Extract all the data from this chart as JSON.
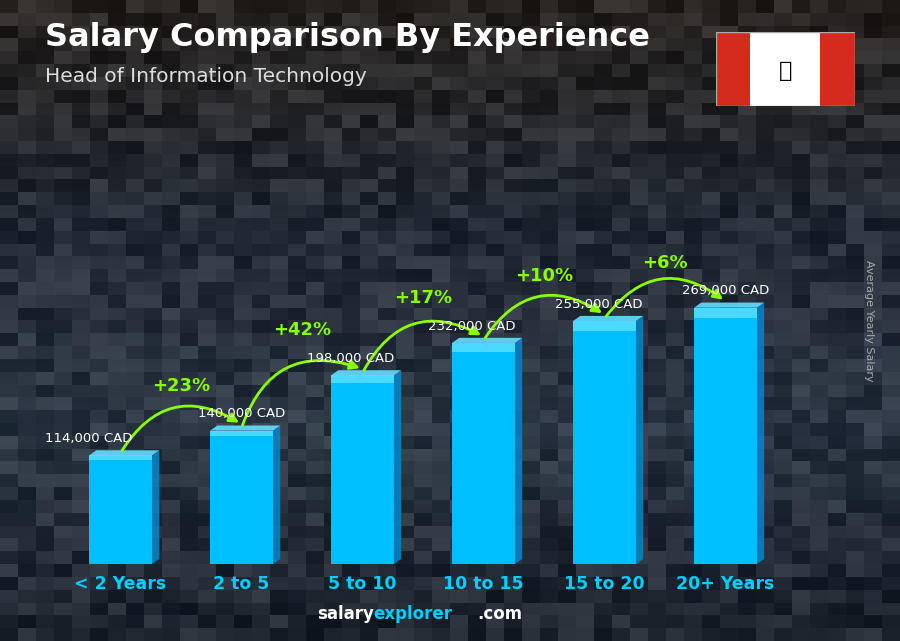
{
  "title": "Salary Comparison By Experience",
  "subtitle": "Head of Information Technology",
  "categories": [
    "< 2 Years",
    "2 to 5",
    "5 to 10",
    "10 to 15",
    "15 to 20",
    "20+ Years"
  ],
  "values": [
    114000,
    140000,
    198000,
    232000,
    255000,
    269000
  ],
  "value_labels": [
    "114,000 CAD",
    "140,000 CAD",
    "198,000 CAD",
    "232,000 CAD",
    "255,000 CAD",
    "269,000 CAD"
  ],
  "pct_changes": [
    "+23%",
    "+42%",
    "+17%",
    "+10%",
    "+6%"
  ],
  "bar_color_main": "#00bfff",
  "bar_color_top": "#55ddff",
  "bar_color_side": "#0088cc",
  "bg_top": "#1a1a2e",
  "bg_bottom": "#2a1a0e",
  "title_color": "#ffffff",
  "subtitle_color": "#dddddd",
  "value_label_color": "#ffffff",
  "pct_color": "#88ff00",
  "xlabel_color": "#00cfff",
  "footer_salary_color": "#ffffff",
  "footer_explorer_color": "#00cfff",
  "ylabel_text": "Average Yearly Salary",
  "figsize": [
    9.0,
    6.41
  ],
  "dpi": 100
}
